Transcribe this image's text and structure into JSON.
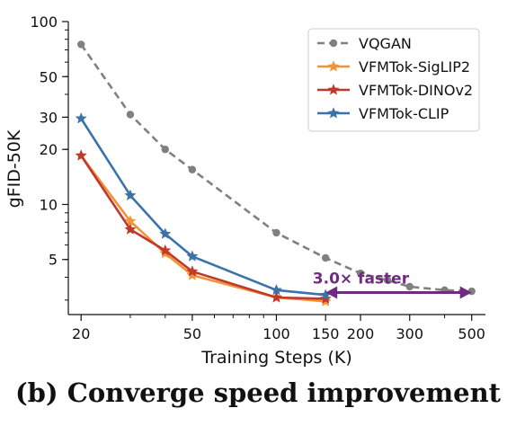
{
  "chart_data": {
    "type": "line",
    "title": "",
    "xlabel": "Training Steps (K)",
    "ylabel": "gFID-50K",
    "x_scale": "log",
    "y_scale": "log",
    "xlim": [
      18,
      560
    ],
    "ylim": [
      2.5,
      100
    ],
    "x_ticks": [
      20,
      50,
      100,
      150,
      200,
      300,
      500
    ],
    "x_tick_labels": [
      "20",
      "50",
      "100",
      "150",
      "200",
      "300",
      "500"
    ],
    "y_ticks": [
      5,
      10,
      20,
      30,
      50,
      100
    ],
    "y_tick_labels": [
      "5",
      "10",
      "20",
      "30",
      "50",
      "100"
    ],
    "grid": false,
    "legend_position": "top-right",
    "series": [
      {
        "name": "VQGAN",
        "color": "#808080",
        "marker": "circle",
        "line_style": "dashed",
        "points": [
          [
            20,
            75
          ],
          [
            30,
            31
          ],
          [
            40,
            20
          ],
          [
            50,
            15.5
          ],
          [
            100,
            7
          ],
          [
            150,
            5.1
          ],
          [
            200,
            4.2
          ],
          [
            250,
            3.85
          ],
          [
            300,
            3.55
          ],
          [
            400,
            3.4
          ],
          [
            500,
            3.35
          ]
        ]
      },
      {
        "name": "VFMTok-SigLIP2",
        "color": "#F0943A",
        "marker": "star",
        "line_style": "solid",
        "points": [
          [
            20,
            18.5
          ],
          [
            30,
            8.1
          ],
          [
            40,
            5.4
          ],
          [
            50,
            4.1
          ],
          [
            100,
            3.1
          ],
          [
            150,
            2.95
          ]
        ]
      },
      {
        "name": "VFMTok-DINOv2",
        "color": "#C0392B",
        "marker": "star",
        "line_style": "solid",
        "points": [
          [
            20,
            18.5
          ],
          [
            30,
            7.3
          ],
          [
            40,
            5.6
          ],
          [
            50,
            4.3
          ],
          [
            100,
            3.1
          ],
          [
            150,
            3.05
          ]
        ]
      },
      {
        "name": "VFMTok-CLIP",
        "color": "#3B73A8",
        "marker": "star",
        "line_style": "solid",
        "points": [
          [
            20,
            29.5
          ],
          [
            30,
            11.2
          ],
          [
            40,
            6.9
          ],
          [
            50,
            5.2
          ],
          [
            100,
            3.4
          ],
          [
            150,
            3.2
          ]
        ]
      }
    ],
    "annotation": {
      "text": "3.0× faster",
      "color": "#6E2C7E",
      "from_x": 150,
      "to_x": 500,
      "y": 3.3
    }
  },
  "caption": "(b) Converge speed improvement"
}
